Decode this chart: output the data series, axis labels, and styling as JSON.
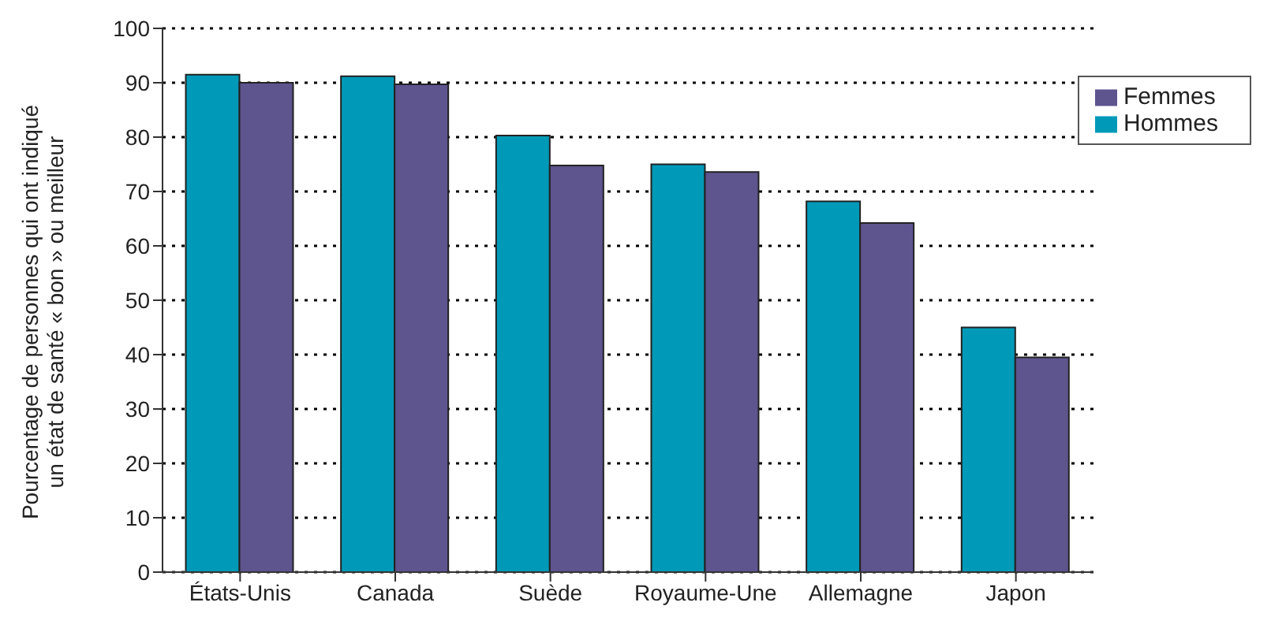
{
  "chart_data": {
    "type": "bar",
    "ylabel": "Pourcentage de personnes qui ont indiqué\nun état de santé « bon » ou meilleur",
    "categories": [
      "États-Unis",
      "Canada",
      "Suède",
      "Royaume-Une",
      "Allemagne",
      "Japon"
    ],
    "series": [
      {
        "name": "Hommes",
        "color": "#009ab8",
        "values": [
          91.5,
          91.2,
          80.3,
          75.0,
          68.2,
          45.0
        ]
      },
      {
        "name": "Femmes",
        "color": "#5e548e",
        "values": [
          90.0,
          89.7,
          74.8,
          73.6,
          64.2,
          39.5
        ]
      }
    ],
    "ylim": [
      0,
      100
    ],
    "yticks": [
      0,
      10,
      20,
      30,
      40,
      50,
      60,
      70,
      80,
      90,
      100
    ],
    "grid": "y",
    "legend": "top right"
  }
}
